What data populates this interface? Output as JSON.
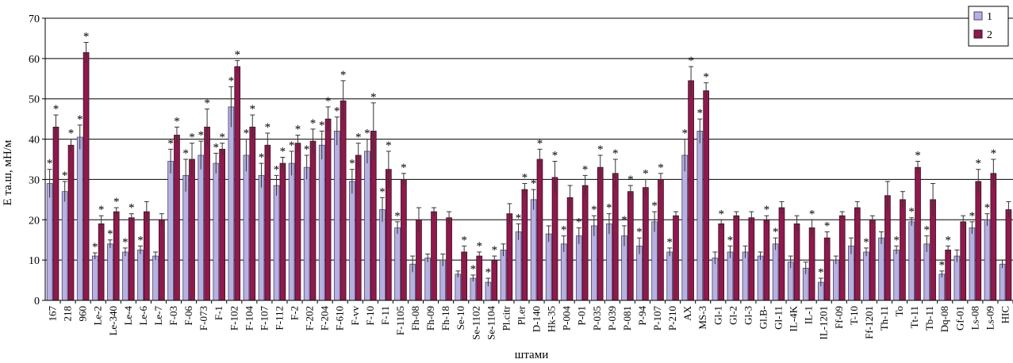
{
  "colors": {
    "series1": "#b7b0e0",
    "series1_stroke": "#4a4472",
    "series2": "#8e1a4c",
    "series2_stroke": "#3a0a20",
    "grid": "#000000",
    "error": "#333333"
  },
  "chart_data": {
    "type": "bar",
    "title": "",
    "ylabel": "E та.ш, мН/м",
    "xlabel": "штами",
    "ylim": [
      0,
      70
    ],
    "yticks": [
      0,
      10,
      20,
      30,
      40,
      50,
      60,
      70
    ],
    "grid": "horizontal",
    "legend_position": "top-right",
    "categories": [
      "167",
      "218",
      "960",
      "Le-2",
      "Le-340",
      "Le-4",
      "Le-6",
      "Le-7",
      "F-03",
      "F-06",
      "F-073",
      "F-1",
      "F-102",
      "F-104",
      "F-107",
      "F-112",
      "F-2",
      "F-202",
      "F-204",
      "F-610",
      "F-vv",
      "F-10",
      "F-11",
      "F-1105",
      "Fh-08",
      "Fh-09",
      "Fh-18",
      "Se-10",
      "Se-1102",
      "Se-1104",
      "Pl.citr",
      "Pl.er",
      "D-140",
      "Hk-35",
      "P-004",
      "P-01",
      "P-035",
      "P-039",
      "P-081",
      "P-94",
      "P-107",
      "P-210",
      "AX",
      "MS-3",
      "Gl-1",
      "Gl-2",
      "Gl-3",
      "Gl.B-",
      "Gl-11",
      "IL-4K",
      "IL-1",
      "IL-1201",
      "Ff-09",
      "T-10",
      "Ff-1201",
      "Th-11",
      "To",
      "Tt-11",
      "Tb-11",
      "Dq-08",
      "Gf-01",
      "Ls-08",
      "Ls-09",
      "HIC"
    ],
    "series": [
      {
        "name": "1",
        "values": [
          29,
          27,
          40.5,
          11,
          14,
          12,
          12.5,
          11,
          34.5,
          31,
          36,
          34,
          48,
          36,
          31,
          28.5,
          34,
          33,
          38.5,
          42,
          29.5,
          37,
          22.5,
          18,
          9,
          10.5,
          10,
          6.5,
          5.5,
          4.5,
          12.5,
          17,
          25,
          16.5,
          14,
          16,
          18.5,
          19,
          16,
          13.5,
          19.5,
          12,
          36,
          42,
          10.5,
          12,
          12,
          11,
          14,
          9.5,
          8,
          4.5,
          10,
          13.5,
          12,
          15.5,
          12.5,
          19.5,
          14,
          6.5,
          11,
          18,
          20,
          9
        ],
        "errors": [
          3.5,
          2.5,
          3,
          0.8,
          1,
          1,
          1,
          1,
          3,
          4,
          3.5,
          2.5,
          5,
          4,
          3,
          2.5,
          3,
          3,
          3.5,
          3.5,
          3,
          3,
          3,
          1.5,
          2,
          1,
          1.5,
          0.8,
          0.8,
          1,
          1.5,
          2,
          2.5,
          2,
          2,
          2,
          2.5,
          2.5,
          2.5,
          2,
          2.5,
          1,
          4,
          3,
          1.5,
          1.5,
          1.5,
          1,
          1.5,
          1.5,
          1.5,
          1,
          1,
          2,
          1,
          1.5,
          1,
          1,
          2,
          0.8,
          1.5,
          1.5,
          1.5,
          1
        ]
      },
      {
        "name": "2",
        "values": [
          43,
          38.5,
          61.5,
          19,
          22,
          20.5,
          22,
          20,
          41,
          35,
          43,
          37.5,
          58,
          43,
          38.5,
          34,
          39,
          39.5,
          45,
          49.5,
          36,
          42,
          32.5,
          30,
          20,
          22,
          20.5,
          12,
          11,
          10,
          21.5,
          27.5,
          35,
          30.5,
          25.5,
          28.5,
          33,
          31.5,
          27,
          28,
          30,
          21,
          54.5,
          52,
          19,
          21,
          20.5,
          20,
          23,
          19,
          18,
          15.5,
          21,
          23,
          20,
          26,
          25,
          33,
          25,
          12.5,
          19.5,
          29.5,
          31.5,
          22.5
        ],
        "errors": [
          3,
          1.5,
          2.5,
          2,
          1,
          1,
          2.5,
          1.5,
          2,
          4,
          4.5,
          1.5,
          1.5,
          3,
          3,
          1.5,
          2,
          3,
          3,
          5,
          3,
          7,
          4.5,
          1.5,
          3,
          1,
          1.5,
          1.5,
          1,
          1,
          2.5,
          1.5,
          2.5,
          4,
          3,
          2.5,
          3,
          3.5,
          1.5,
          2,
          1.5,
          1,
          3.5,
          2,
          1,
          1,
          1.5,
          1,
          1.5,
          2,
          2,
          1.5,
          1,
          1.5,
          1,
          3.5,
          2,
          1.5,
          4,
          1,
          1.5,
          3,
          3.5,
          2
        ]
      }
    ],
    "star_marker": "*",
    "stars_1": [
      1,
      1,
      1,
      1,
      1,
      1,
      1,
      0,
      1,
      1,
      1,
      1,
      1,
      1,
      1,
      1,
      1,
      1,
      1,
      1,
      1,
      1,
      1,
      1,
      0,
      0,
      0,
      0,
      1,
      1,
      0,
      1,
      1,
      0,
      1,
      1,
      1,
      1,
      1,
      1,
      1,
      1,
      1,
      1,
      0,
      1,
      0,
      0,
      1,
      0,
      0,
      1,
      0,
      0,
      1,
      0,
      1,
      1,
      1,
      1,
      0,
      1,
      1,
      0
    ],
    "stars_2": [
      1,
      1,
      1,
      1,
      1,
      1,
      0,
      0,
      1,
      1,
      1,
      1,
      1,
      1,
      1,
      1,
      1,
      1,
      1,
      1,
      1,
      1,
      1,
      1,
      0,
      0,
      0,
      1,
      1,
      1,
      0,
      1,
      1,
      1,
      0,
      1,
      1,
      1,
      1,
      1,
      1,
      0,
      1,
      1,
      1,
      0,
      0,
      1,
      0,
      0,
      1,
      1,
      0,
      0,
      0,
      0,
      0,
      1,
      0,
      1,
      0,
      1,
      1,
      0
    ]
  }
}
